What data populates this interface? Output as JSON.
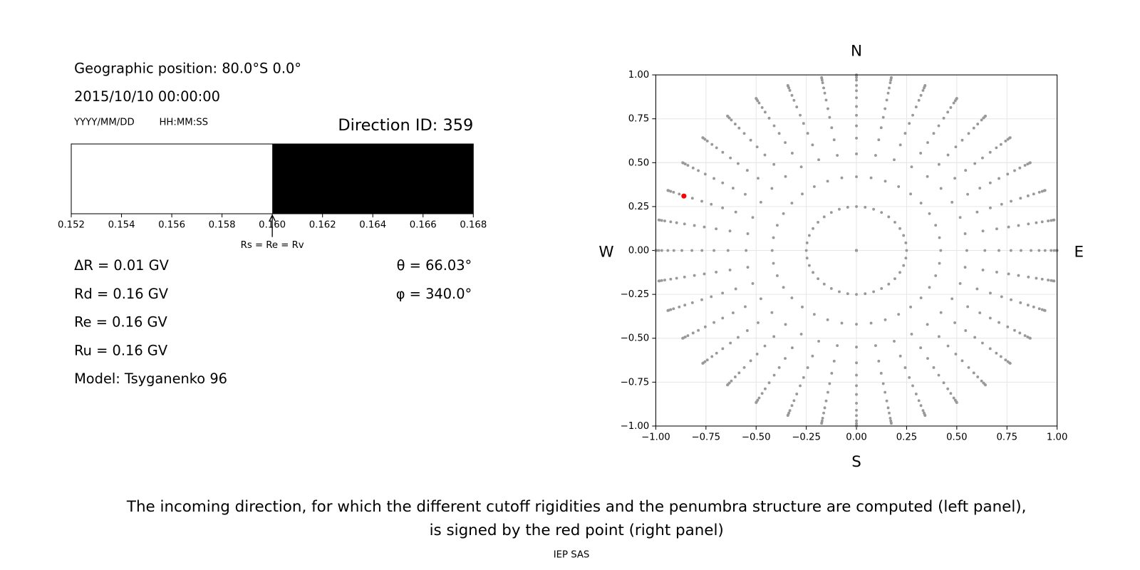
{
  "header": {
    "position": "Geographic position: 80.0°S 0.0°",
    "datetime": "2015/10/10 00:00:00",
    "date_format": "YYYY/MM/DD",
    "time_format": "HH:MM:SS",
    "direction": "Direction ID: 359"
  },
  "results": [
    "ΔR = 0.01 GV",
    "Rd = 0.16 GV",
    "Re = 0.16 GV",
    "Ru = 0.16 GV",
    "Model: Tsyganenko 96"
  ],
  "angles": [
    "θ = 66.03°",
    "φ = 340.0°"
  ],
  "chart_data": [
    {
      "type": "penumbra",
      "segments": [
        {
          "start": 0.152,
          "end": 0.16,
          "color": "#ffffff"
        },
        {
          "start": 0.16,
          "end": 0.168,
          "color": "#000000"
        }
      ],
      "marker": {
        "value": 0.16,
        "label": "Rs = Re = Rv"
      },
      "xlim": [
        0.152,
        0.168
      ],
      "xticks": [
        0.152,
        0.154,
        0.156,
        0.158,
        {
          "value": 0.16,
          "label": "0.160"
        },
        0.162,
        0.164,
        0.166,
        0.168
      ]
    },
    {
      "type": "scatter",
      "r": [
        0,
        0.25,
        0.42,
        0.55,
        0.64,
        0.71,
        0.77,
        0.82,
        0.87,
        0.91,
        0.94,
        0.97,
        0.985,
        0.996,
        1.0
      ],
      "phi": [
        0,
        10,
        20,
        30,
        40,
        50,
        60,
        70,
        80,
        90,
        100,
        110,
        120,
        130,
        140,
        150,
        160,
        170,
        180,
        190,
        200,
        210,
        220,
        230,
        240,
        250,
        260,
        270,
        280,
        290,
        300,
        310,
        320,
        330,
        340,
        350
      ],
      "color": "#999999",
      "highlight": {
        "x": -0.86,
        "y": 0.31,
        "color": "#ff0000"
      },
      "xlim": [
        -1,
        1
      ],
      "ylim": [
        -1,
        1
      ],
      "xticks": [
        {
          "value": -1,
          "label": "−1.00"
        },
        {
          "value": -0.75,
          "label": "−0.75"
        },
        {
          "value": -0.5,
          "label": "−0.50"
        },
        {
          "value": -0.25,
          "label": "−0.25"
        },
        {
          "value": 0,
          "label": "0.00"
        },
        0.25,
        {
          "value": 0.5,
          "label": "0.50"
        },
        0.75,
        {
          "value": 1,
          "label": "1.00"
        }
      ],
      "yticks": [
        {
          "value": -1,
          "label": "−1.00"
        },
        {
          "value": -0.75,
          "label": "−0.75"
        },
        {
          "value": -0.5,
          "label": "−0.50"
        },
        {
          "value": -0.25,
          "label": "−0.25"
        },
        {
          "value": 0,
          "label": "0.00"
        },
        0.25,
        {
          "value": 0.5,
          "label": "0.50"
        },
        0.75,
        {
          "value": 1,
          "label": "1.00"
        }
      ],
      "grid": true,
      "compass": {
        "north": "N",
        "south": "S",
        "west": "W",
        "east": "E"
      }
    }
  ],
  "caption": [
    "The incoming direction, for which the different cutoff rigidities and the penumbra structure are computed (left panel),",
    "is signed by the red point (right panel)"
  ],
  "footer": "IEP SAS"
}
